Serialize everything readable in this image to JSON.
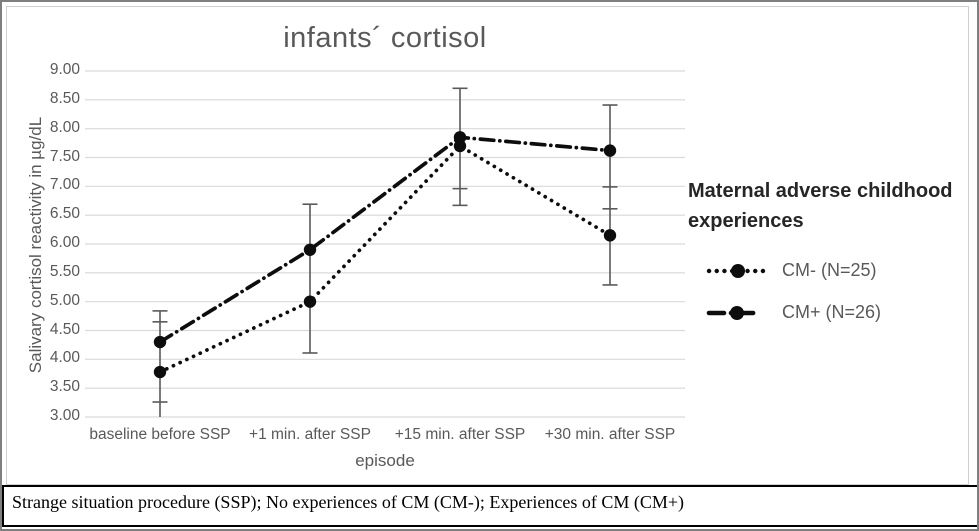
{
  "figure": {
    "footer_note": "Strange situation procedure (SSP); No experiences of CM (CM-); Experiences of CM (CM+)"
  },
  "chart_data": {
    "type": "line",
    "title": "infants´ cortisol",
    "xlabel": "episode",
    "ylabel": "Salivary cortisol reactivity in µg/dL",
    "categories": [
      "baseline before SSP",
      "+1 min. after SSP",
      "+15 min. after SSP",
      "+30 min. after SSP"
    ],
    "y_ticks": [
      "9.00",
      "8.50",
      "8.00",
      "7.50",
      "7.00",
      "6.50",
      "6.00",
      "5.50",
      "5.00",
      "4.50",
      "4.00",
      "3.50",
      "3.00"
    ],
    "ylim": [
      3.0,
      9.0
    ],
    "grid": true,
    "legend_position": "right",
    "legend_title": "Maternal adverse childhood experiences",
    "series": [
      {
        "name": "CM- (N=25)",
        "line_style": "dotted",
        "marker": "circle",
        "values": [
          3.78,
          5.0,
          7.7,
          6.15
        ],
        "error_range": [
          [
            3.0,
            4.65
          ],
          [
            4.11,
            5.83
          ],
          [
            6.67,
            8.7
          ],
          [
            5.29,
            6.99
          ]
        ]
      },
      {
        "name": "CM+ (N=26)",
        "line_style": "dash-dot",
        "marker": "circle",
        "values": [
          4.3,
          5.9,
          7.85,
          7.62
        ],
        "error_range": [
          [
            3.26,
            4.84
          ],
          [
            5.09,
            6.69
          ],
          [
            6.96,
            8.7
          ],
          [
            6.61,
            8.41
          ]
        ]
      }
    ],
    "whiskers_drawn": [
      {
        "span": [
          3.0,
          4.84
        ],
        "caps": [
          4.84,
          4.65,
          3.26
        ]
      },
      {
        "span": [
          4.11,
          6.69
        ],
        "caps": [
          6.69,
          4.11
        ]
      },
      {
        "span": [
          6.67,
          8.7
        ],
        "caps": [
          8.7,
          6.96,
          6.67
        ]
      },
      {
        "span": [
          5.29,
          8.41
        ],
        "caps": [
          8.41,
          6.99,
          6.61,
          5.29
        ]
      }
    ],
    "colors": {
      "series": "#0d0d0d",
      "grid": "#d9d9d9",
      "error_bar": "#595959",
      "axis_text": "#595959",
      "title_text": "#595959",
      "legend_title_text": "#262626",
      "legend_item_text": "#595959"
    }
  }
}
